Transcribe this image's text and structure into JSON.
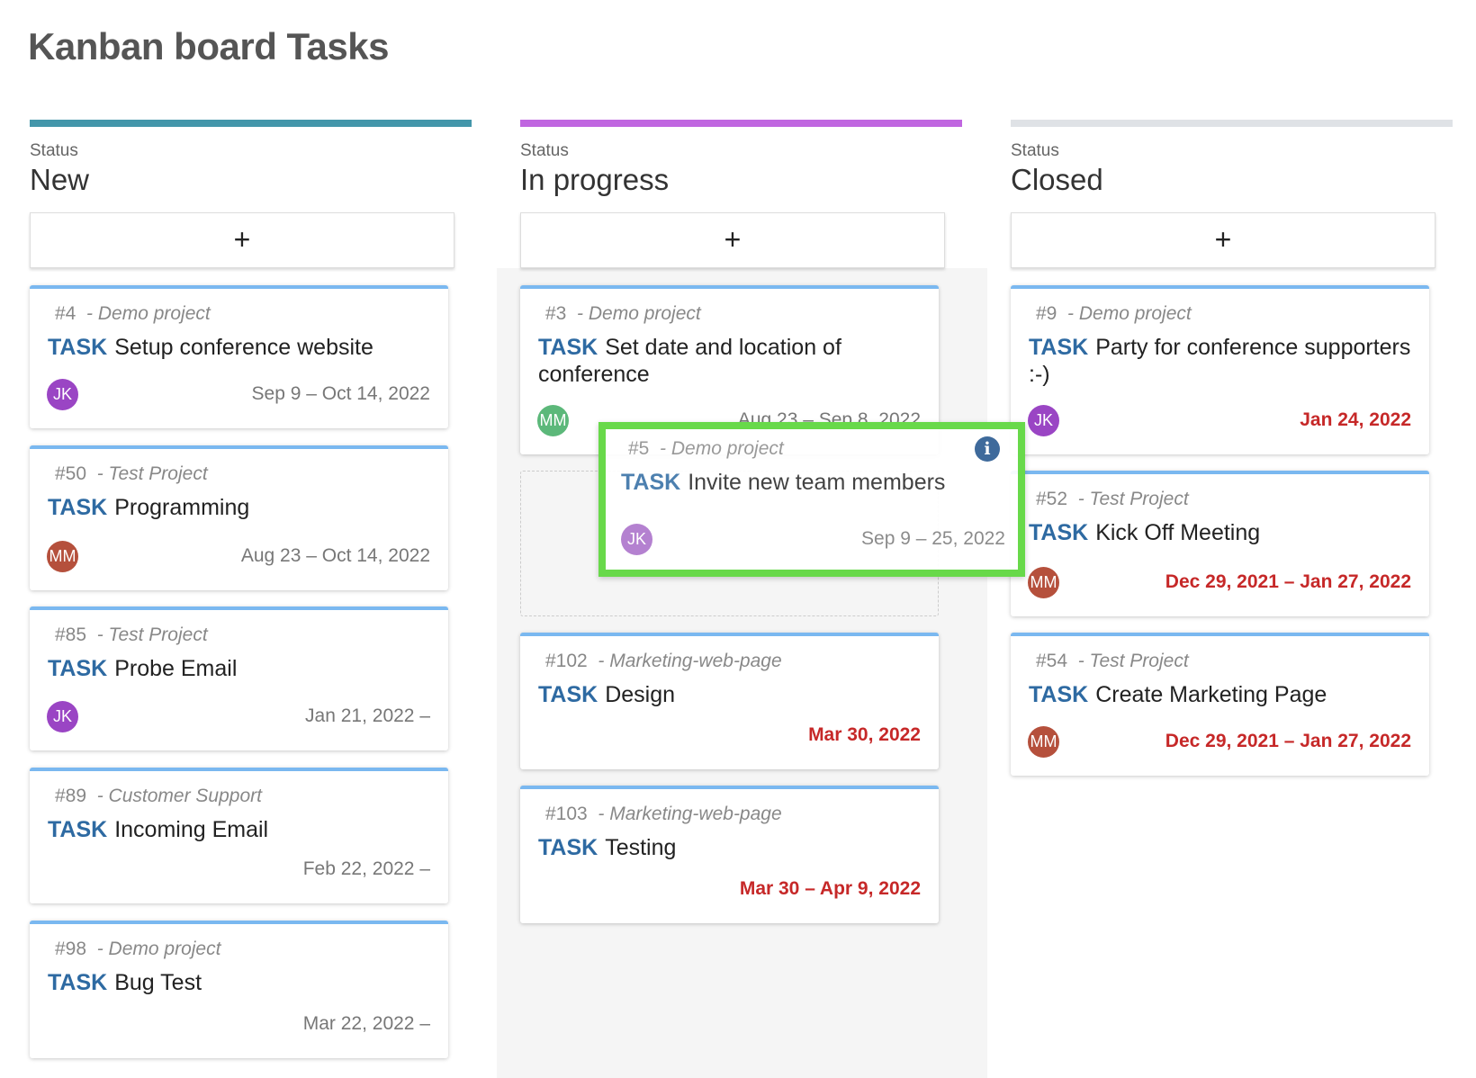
{
  "page": {
    "title": "Kanban board Tasks"
  },
  "colors": {
    "new": "#4396aa",
    "in_progress": "#c066e0",
    "closed": "#dfe2e6",
    "task_kind": "#2e6aa2",
    "overdue": "#c62828",
    "drag_highlight": "#68d94a"
  },
  "columns": [
    {
      "status_label": "Status",
      "name": "New",
      "add_label": "+",
      "bar_color": "#4396aa",
      "cards": [
        {
          "id": "#4",
          "project": "- Demo project",
          "kind": "TASK",
          "title": "Setup conference website",
          "assignee": "JK",
          "avatar_color": "#9a45c4",
          "date": "Sep 9 – Oct 14, 2022",
          "overdue": false
        },
        {
          "id": "#50",
          "project": "- Test Project",
          "kind": "TASK",
          "title": "Programming",
          "assignee": "MM",
          "avatar_color": "#b5503c",
          "date": "Aug 23 – Oct 14, 2022",
          "overdue": false
        },
        {
          "id": "#85",
          "project": "- Test Project",
          "kind": "TASK",
          "title": "Probe Email",
          "assignee": "JK",
          "avatar_color": "#9a45c4",
          "date": "Jan 21, 2022 –",
          "overdue": false
        },
        {
          "id": "#89",
          "project": "- Customer Support",
          "kind": "TASK",
          "title": "Incoming Email",
          "assignee": "",
          "date": "Feb 22, 2022 –",
          "overdue": false
        },
        {
          "id": "#98",
          "project": "- Demo project",
          "kind": "TASK",
          "title": "Bug Test",
          "assignee": "",
          "date": "Mar 22, 2022 –",
          "overdue": false
        }
      ]
    },
    {
      "status_label": "Status",
      "name": "In progress",
      "add_label": "+",
      "bar_color": "#c066e0",
      "cards": [
        {
          "id": "#3",
          "project": "- Demo project",
          "kind": "TASK",
          "title": "Set date and location of conference",
          "assignee": "MM",
          "avatar_color": "#5cb87a",
          "date": "Aug 23 – Sep 8, 2022",
          "overdue": false
        },
        {
          "id": "#102",
          "project": "- Marketing-web-page",
          "kind": "TASK",
          "title": "Design",
          "assignee": "",
          "date": "Mar 30, 2022",
          "overdue": true
        },
        {
          "id": "#103",
          "project": "- Marketing-web-page",
          "kind": "TASK",
          "title": "Testing",
          "assignee": "",
          "date": "Mar 30 – Apr 9, 2022",
          "overdue": true
        }
      ]
    },
    {
      "status_label": "Status",
      "name": "Closed",
      "add_label": "+",
      "bar_color": "#dfe2e6",
      "cards": [
        {
          "id": "#9",
          "project": "- Demo project",
          "kind": "TASK",
          "title": "Party for conference supporters :-)",
          "assignee": "JK",
          "avatar_color": "#9a45c4",
          "date": "Jan 24, 2022",
          "overdue": true
        },
        {
          "id": "#52",
          "project": "- Test Project",
          "kind": "TASK",
          "title": "Kick Off Meeting",
          "assignee": "MM",
          "avatar_color": "#b5503c",
          "date": "Dec 29, 2021 – Jan 27, 2022",
          "overdue": true
        },
        {
          "id": "#54",
          "project": "- Test Project",
          "kind": "TASK",
          "title": "Create Marketing Page",
          "assignee": "MM",
          "avatar_color": "#b5503c",
          "date": "Dec 29, 2021 – Jan 27, 2022",
          "overdue": true
        }
      ]
    }
  ],
  "dragged_card": {
    "id": "#5",
    "project": "- Demo project",
    "kind": "TASK",
    "title": "Invite new team members",
    "assignee": "JK",
    "avatar_color": "#a86cc8",
    "date": "Sep 9 – 25, 2022",
    "icon": "info-icon"
  }
}
